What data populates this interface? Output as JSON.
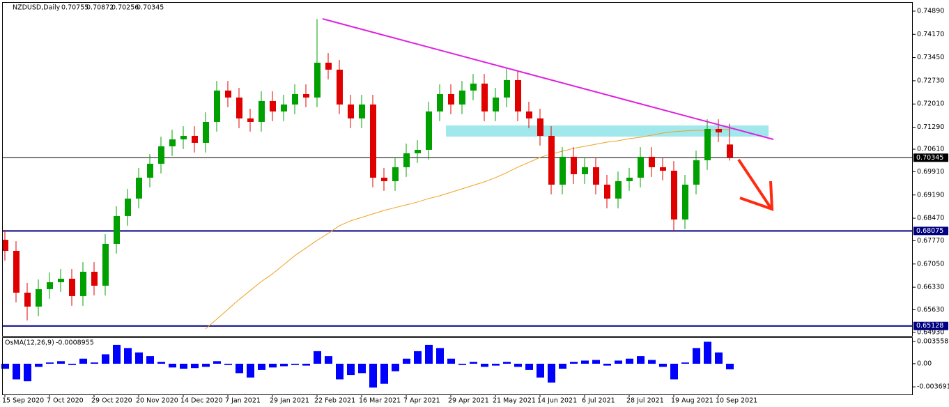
{
  "header": {
    "symbol": "NZDUSD,Daily",
    "open": 0.70755,
    "high": 0.70872,
    "low": 0.70256,
    "close": 0.70345
  },
  "chart_data": [
    {
      "type": "candlestick",
      "categories": [
        "15 Sep 2020",
        null,
        null,
        null,
        "7 Oct 2020",
        null,
        null,
        null,
        "29 Oct 2020",
        null,
        null,
        null,
        "20 Nov 2020",
        null,
        null,
        null,
        "14 Dec 2020",
        null,
        null,
        null,
        "7 Jan 2021",
        null,
        null,
        null,
        "29 Jan 2021",
        null,
        null,
        null,
        "22 Feb 2021",
        null,
        null,
        null,
        "16 Mar 2021",
        null,
        null,
        null,
        "7 Apr 2021",
        null,
        null,
        null,
        "29 Apr 2021",
        null,
        null,
        null,
        "21 May 2021",
        null,
        null,
        null,
        "14 Jun 2021",
        null,
        null,
        null,
        "6 Jul 2021",
        null,
        null,
        null,
        "28 Jul 2021",
        null,
        null,
        null,
        "19 Aug 2021",
        null,
        null,
        null,
        "10 Sep 2021",
        null
      ],
      "open": [
        0.678,
        0.67457,
        0.66161,
        0.65729,
        0.66269,
        0.66485,
        0.66593,
        0.66053,
        0.66809,
        0.66377,
        0.67673,
        0.68538,
        0.69078,
        0.69726,
        0.70158,
        0.70698,
        0.70914,
        0.71022,
        0.70806,
        0.71454,
        0.72427,
        0.72211,
        0.71563,
        0.71454,
        0.72103,
        0.71779,
        0.71995,
        0.72319,
        0.72211,
        0.73291,
        0.73075,
        0.71995,
        0.71563,
        0.71995,
        0.69726,
        0.69618,
        0.7005,
        0.70482,
        0.7059,
        0.71779,
        0.72319,
        0.71995,
        0.72427,
        0.72643,
        0.71779,
        0.72211,
        0.72751,
        0.71779,
        0.71563,
        0.71022,
        0.6951,
        0.70374,
        0.69834,
        0.7005,
        0.6951,
        0.69078,
        0.69618,
        0.69726,
        0.70374,
        0.7005,
        0.69942,
        0.6843,
        0.6951,
        0.70266,
        0.71238,
        0.70755
      ],
      "high": [
        0.681,
        0.67757,
        0.66461,
        0.66569,
        0.66785,
        0.66893,
        0.66893,
        0.67109,
        0.67109,
        0.67973,
        0.68838,
        0.69378,
        0.70026,
        0.70458,
        0.70998,
        0.71214,
        0.71322,
        0.71322,
        0.71754,
        0.72727,
        0.72727,
        0.72511,
        0.71863,
        0.72403,
        0.72403,
        0.72295,
        0.72619,
        0.72619,
        0.7465,
        0.73591,
        0.73375,
        0.72295,
        0.72295,
        0.72295,
        0.70026,
        0.7035,
        0.70782,
        0.7089,
        0.72079,
        0.72619,
        0.72619,
        0.72727,
        0.72943,
        0.72943,
        0.72511,
        0.731,
        0.73051,
        0.72079,
        0.71863,
        0.71322,
        0.70674,
        0.70674,
        0.7035,
        0.7035,
        0.6981,
        0.69918,
        0.70026,
        0.70674,
        0.70674,
        0.7035,
        0.70242,
        0.6981,
        0.70566,
        0.71538,
        0.71538,
        0.714
      ],
      "low": [
        0.67157,
        0.65861,
        0.653,
        0.65429,
        0.65969,
        0.66185,
        0.65753,
        0.65753,
        0.66077,
        0.66077,
        0.67373,
        0.68238,
        0.68778,
        0.69426,
        0.69858,
        0.70398,
        0.70614,
        0.70506,
        0.70506,
        0.71154,
        0.71911,
        0.71263,
        0.71154,
        0.71154,
        0.71479,
        0.71479,
        0.71695,
        0.71911,
        0.71911,
        0.72775,
        0.71695,
        0.71263,
        0.71263,
        0.69426,
        0.69318,
        0.69318,
        0.6975,
        0.70182,
        0.7029,
        0.71479,
        0.71695,
        0.71695,
        0.72127,
        0.71479,
        0.71479,
        0.71911,
        0.71479,
        0.71263,
        0.70722,
        0.6921,
        0.6921,
        0.69534,
        0.69534,
        0.6921,
        0.68778,
        0.68778,
        0.69318,
        0.69426,
        0.6975,
        0.69642,
        0.6808,
        0.6813,
        0.6921,
        0.69966,
        0.7083,
        0.70256
      ],
      "close": [
        0.67457,
        0.66161,
        0.65729,
        0.66269,
        0.66485,
        0.66593,
        0.66053,
        0.66809,
        0.66377,
        0.67673,
        0.68538,
        0.69078,
        0.69726,
        0.70158,
        0.70698,
        0.70914,
        0.71022,
        0.70806,
        0.71454,
        0.72427,
        0.72211,
        0.71563,
        0.71454,
        0.72103,
        0.71779,
        0.71995,
        0.72319,
        0.72211,
        0.73291,
        0.73075,
        0.71995,
        0.71563,
        0.71995,
        0.69726,
        0.69618,
        0.7005,
        0.70482,
        0.7059,
        0.71779,
        0.72319,
        0.71995,
        0.72427,
        0.72643,
        0.71779,
        0.72211,
        0.72751,
        0.71779,
        0.71563,
        0.71022,
        0.6951,
        0.70374,
        0.69834,
        0.7005,
        0.6951,
        0.69078,
        0.69618,
        0.69726,
        0.70374,
        0.7005,
        0.69942,
        0.6843,
        0.6951,
        0.70266,
        0.71238,
        0.7113,
        0.70345
      ],
      "up_color": "#00a000",
      "down_color": "#e00000",
      "overlay_values": [
        null,
        null,
        null,
        null,
        null,
        null,
        null,
        null,
        null,
        null,
        null,
        null,
        null,
        null,
        null,
        null,
        null,
        null,
        0.65037,
        0.65339,
        0.65642,
        0.65945,
        0.66226,
        0.66506,
        0.66744,
        0.67025,
        0.67306,
        0.67544,
        0.67781,
        0.67997,
        0.68235,
        0.68386,
        0.68494,
        0.68602,
        0.6871,
        0.68797,
        0.68883,
        0.6897,
        0.69078,
        0.69164,
        0.69272,
        0.6938,
        0.69488,
        0.69596,
        0.69726,
        0.69877,
        0.7005,
        0.70201,
        0.70353,
        0.70461,
        0.70547,
        0.70634,
        0.70698,
        0.70763,
        0.70828,
        0.70871,
        0.70936,
        0.70979,
        0.71044,
        0.71109,
        0.71152,
        0.71174,
        0.71195,
        0.71195,
        0.71217,
        0.71217
      ],
      "overlay_color": "#f0a020",
      "hlines": [
        {
          "value": 0.70345,
          "color": "#000000"
        },
        {
          "value": 0.68075,
          "color": "#000080"
        },
        {
          "value": 0.65128,
          "color": "#000080"
        }
      ],
      "ylim": [
        0.6482,
        0.7517
      ],
      "yticks": [
        {
          "value": 0.7489,
          "label": "0.74890"
        },
        {
          "value": 0.7417,
          "label": "0.74170"
        },
        {
          "value": 0.7345,
          "label": "0.73450"
        },
        {
          "value": 0.7273,
          "label": "0.72730"
        },
        {
          "value": 0.7201,
          "label": "0.72010"
        },
        {
          "value": 0.7129,
          "label": "0.71290"
        },
        {
          "value": 0.7061,
          "label": "0.70610"
        },
        {
          "value": 0.6991,
          "label": "0.69910"
        },
        {
          "value": 0.6919,
          "label": "0.69190"
        },
        {
          "value": 0.6847,
          "label": "0.68470"
        },
        {
          "value": 0.6777,
          "label": "0.67770"
        },
        {
          "value": 0.6705,
          "label": "0.67050"
        },
        {
          "value": 0.6633,
          "label": "0.66330"
        },
        {
          "value": 0.6563,
          "label": "0.65630"
        },
        {
          "value": 0.6493,
          "label": "0.64930"
        }
      ]
    },
    {
      "type": "bar",
      "title": "OsMA(12,26,9)",
      "values": [
        -0.0008,
        -0.0025,
        -0.0028,
        -0.0005,
        0.0002,
        0.0004,
        -0.0002,
        0.0008,
        0.0002,
        0.0015,
        0.003,
        0.0025,
        0.0018,
        0.0012,
        0.0003,
        -0.0006,
        -0.0008,
        -0.0007,
        -0.0005,
        0.0004,
        -0.0002,
        -0.0015,
        -0.0022,
        -0.001,
        -0.0006,
        -0.0004,
        -0.0002,
        -0.0003,
        0.002,
        0.0012,
        -0.0025,
        -0.0018,
        -0.0015,
        -0.0038,
        -0.0032,
        -0.0012,
        0.0008,
        0.002,
        0.003,
        0.0025,
        0.0008,
        -0.0002,
        0.0003,
        -0.0005,
        -0.0003,
        0.0003,
        -0.0005,
        -0.001,
        -0.0022,
        -0.003,
        -0.0008,
        0.0003,
        0.0005,
        0.0006,
        -0.0003,
        0.0005,
        0.0008,
        0.0012,
        0.0006,
        -0.0005,
        -0.0025,
        0.0002,
        0.0025,
        0.0035,
        0.0018,
        -0.0008955
      ],
      "color": "#0000ff",
      "ylim": [
        -0.0049,
        0.0041
      ],
      "yticks": [
        0.003558,
        {
          "value": 0,
          "label": "0.00"
        },
        -0.003691
      ]
    }
  ]
}
